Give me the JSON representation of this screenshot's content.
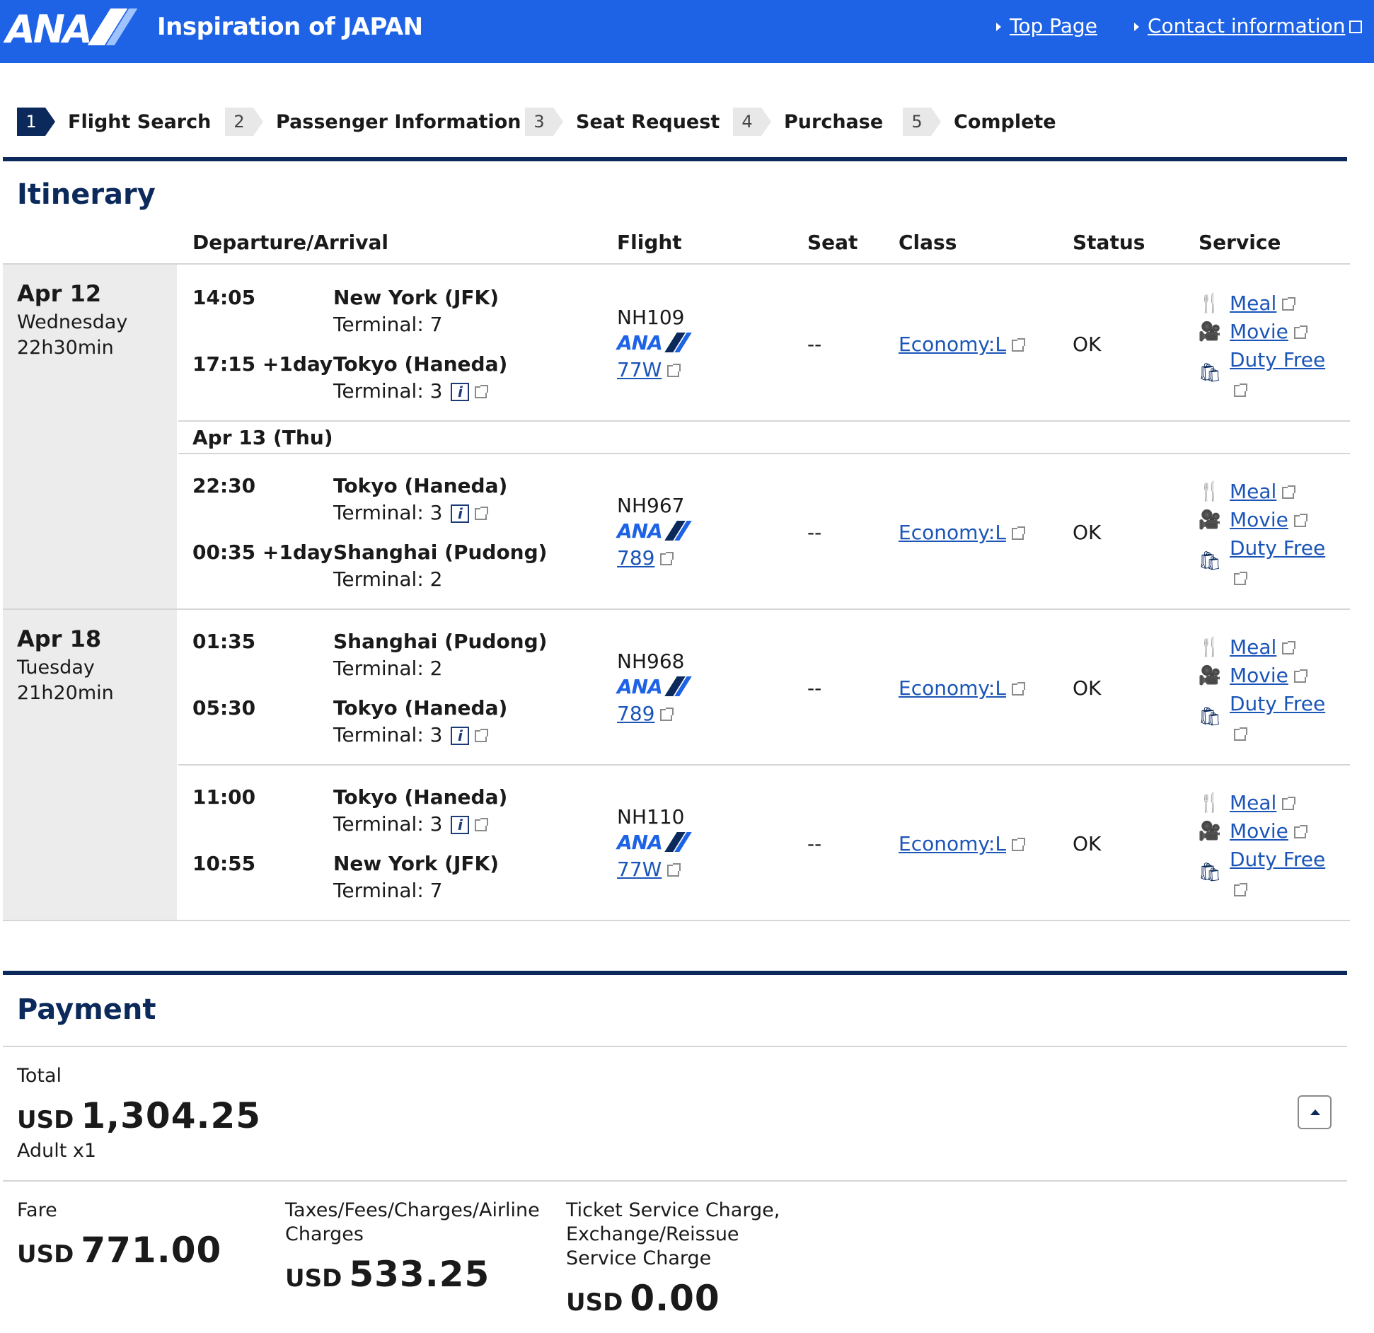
{
  "header": {
    "logo_text": "ANA",
    "tagline": "Inspiration of JAPAN",
    "links": [
      "Top Page",
      "Contact information"
    ]
  },
  "steps": [
    {
      "num": "1",
      "label": "Flight Search",
      "active": true
    },
    {
      "num": "2",
      "label": "Passenger Information",
      "active": false
    },
    {
      "num": "3",
      "label": "Seat Request",
      "active": false
    },
    {
      "num": "4",
      "label": "Purchase",
      "active": false
    },
    {
      "num": "5",
      "label": "Complete",
      "active": false
    }
  ],
  "itinerary": {
    "title": "Itinerary",
    "columns": [
      "Departure/Arrival",
      "Flight",
      "Seat",
      "Class",
      "Status",
      "Service"
    ],
    "days": [
      {
        "date": "Apr 12",
        "weekday": "Wednesday",
        "duration": "22h30min"
      },
      {
        "date": "Apr 18",
        "weekday": "Tuesday",
        "duration": "21h20min"
      }
    ],
    "sub_date": "Apr 13 (Thu)",
    "segments": [
      {
        "dep_time": "14:05",
        "dep_city": "New York (JFK)",
        "dep_terminal": "Terminal: 7",
        "arr_time": "17:15 +1day",
        "arr_city": "Tokyo (Haneda)",
        "arr_terminal": "Terminal: 3",
        "flight": "NH109",
        "aircraft": "77W",
        "seat": "--",
        "class": "Economy:L",
        "status": "OK"
      },
      {
        "dep_time": "22:30",
        "dep_city": "Tokyo (Haneda)",
        "dep_terminal": "Terminal: 3",
        "arr_time": "00:35 +1day",
        "arr_city": "Shanghai (Pudong)",
        "arr_terminal": "Terminal: 2",
        "flight": "NH967",
        "aircraft": "789",
        "seat": "--",
        "class": "Economy:L",
        "status": "OK"
      },
      {
        "dep_time": "01:35",
        "dep_city": "Shanghai (Pudong)",
        "dep_terminal": "Terminal: 2",
        "arr_time": "05:30",
        "arr_city": "Tokyo (Haneda)",
        "arr_terminal": "Terminal: 3",
        "flight": "NH968",
        "aircraft": "789",
        "seat": "--",
        "class": "Economy:L",
        "status": "OK"
      },
      {
        "dep_time": "11:00",
        "dep_city": "Tokyo (Haneda)",
        "dep_terminal": "Terminal: 3",
        "arr_time": "10:55",
        "arr_city": "New York (JFK)",
        "arr_terminal": "Terminal: 7",
        "flight": "NH110",
        "aircraft": "77W",
        "seat": "--",
        "class": "Economy:L",
        "status": "OK"
      }
    ],
    "services": [
      "Meal",
      "Movie",
      "Duty Free"
    ],
    "airline_mark": "ANA",
    "info_icon": "i"
  },
  "payment": {
    "title": "Payment",
    "total_label": "Total",
    "currency": "USD",
    "total_amount": "1,304.25",
    "passengers": "Adult x1",
    "fare_label": "Fare",
    "fare_amount": "771.00",
    "taxes_label": "Taxes/Fees/Charges/Airline Charges",
    "taxes_amount": "533.25",
    "service_label": "Ticket Service Charge, Exchange/Reissue Service Charge",
    "service_amount": "0.00"
  },
  "colors": {
    "header_bg": "#1e63e6",
    "navy": "#0b2a5b",
    "link": "#1b55b8",
    "date_col_bg": "#ececec"
  }
}
